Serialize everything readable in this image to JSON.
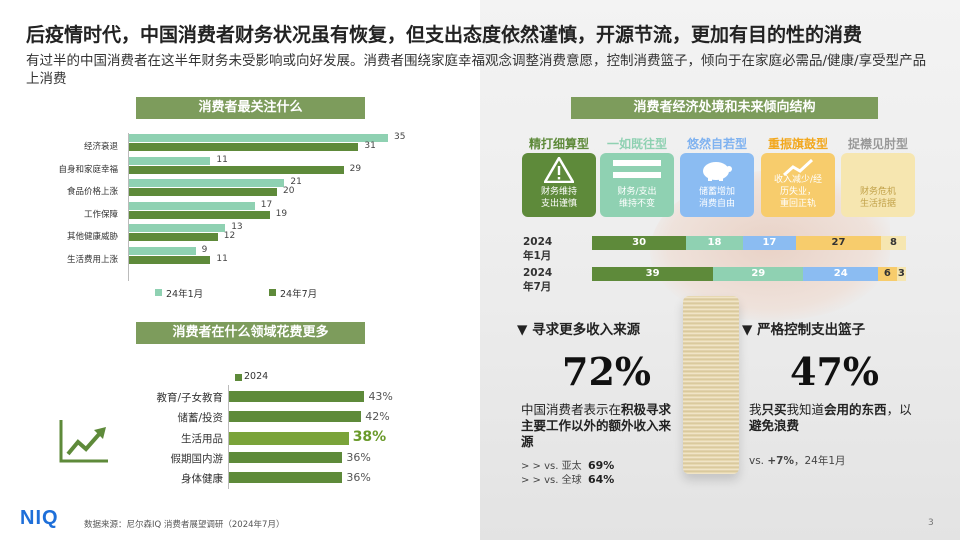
{
  "title": "后疫情时代，中国消费者财务状况虽有恢复，但支出态度依然谨慎，开源节流，更加有目的性的消费",
  "subtitle": "有过半的中国消费者在这半年财务未受影响或向好发展。消费者围绕家庭幸福观念调整消费意愿，控制消费篮子，倾向于在家庭必需品/健康/享受型产品上消费",
  "concerns": {
    "header": "消费者最关注什么",
    "colors": {
      "jan": "#8fd1b2",
      "jul": "#5e8a3a"
    },
    "legend_jan": "24年1月",
    "legend_jul": "24年7月",
    "chart_data": {
      "type": "bar",
      "categories": [
        "经济衰退",
        "自身和家庭幸福",
        "食品价格上涨",
        "工作保障",
        "其他健康威胁",
        "生活费用上涨"
      ],
      "series": [
        {
          "name": "24年1月",
          "values": [
            35,
            11,
            21,
            17,
            13,
            9
          ]
        },
        {
          "name": "24年7月",
          "values": [
            31,
            29,
            20,
            19,
            12,
            11
          ]
        }
      ]
    }
  },
  "spending": {
    "header": "消费者在什么领域花费更多",
    "legend": "2024",
    "color": "#5e8a3a",
    "highlight_color": "#7aa33a",
    "chart_data": {
      "type": "bar",
      "categories": [
        "教育/子女教育",
        "储蓄/投资",
        "生活用品",
        "假期国内游",
        "身体健康"
      ],
      "series": [
        {
          "name": "2024",
          "values": [
            43,
            42,
            38,
            36,
            36
          ]
        }
      ],
      "value_labels": [
        "43%",
        "42%",
        "38%",
        "36%",
        "36%"
      ],
      "highlight_index": 2
    },
    "icon": "rising-chart-icon"
  },
  "structure": {
    "header": "消费者经济处境和未来倾向结构",
    "types": [
      {
        "label": "精打细算型",
        "color": "#5e8a3a",
        "card_bg": "#5e8a3a",
        "card_text": "财务维持\n支出谨慎",
        "icon": "warning-icon"
      },
      {
        "label": "一如既往型",
        "color": "#8fd1b2",
        "card_bg": "#8fd1b2",
        "card_text": "财务/支出\n维持不变",
        "icon": "equals-icon"
      },
      {
        "label": "悠然自若型",
        "color": "#7fb2f0",
        "card_bg": "#8bbcf2",
        "card_text": "储蓄增加\n消费自由",
        "icon": "piggy-bank-icon"
      },
      {
        "label": "重振旗鼓型",
        "color": "#f2a81e",
        "card_bg": "#f7cc6c",
        "card_text": "收入减少/经\n历失业，\n重回正轨",
        "icon": "chart-up-icon"
      },
      {
        "label": "捉襟见肘型",
        "color": "#999999",
        "card_bg": "#f6e6b0",
        "card_text": "财务危机\n生活拮据",
        "icon": "none"
      }
    ],
    "rows": [
      {
        "label": "2024年1月",
        "values": [
          30,
          18,
          17,
          27,
          8
        ]
      },
      {
        "label": "2024年7月",
        "values": [
          39,
          29,
          24,
          6,
          3
        ]
      }
    ],
    "seg_colors": [
      "#5e8a3a",
      "#8fd1b2",
      "#8bbcf2",
      "#f7cc6c",
      "#f6e6b0"
    ]
  },
  "income": {
    "heading": "▼ 寻求更多收入来源",
    "percent": "72%",
    "text_a": "中国消费者表示在",
    "text_b": "积极寻求主要工作以外的额外收入来源",
    "cmp1_label": "> >  vs.  亚太",
    "cmp1_val": "69%",
    "cmp2_label": "> >  vs.  全球",
    "cmp2_val": "64%"
  },
  "basket": {
    "heading": "▼ 严格控制支出篮子",
    "percent": "47%",
    "text_a": "我",
    "text_b": "只买",
    "text_c": "我知道",
    "text_d": "会用的东西",
    "text_e": "，以",
    "text_f": "避免浪费",
    "cmp_a": "vs. ",
    "cmp_b": "+7%",
    "cmp_c": "，24年1月"
  },
  "footer": {
    "logo": "NIQ",
    "source": "数据来源：尼尔森IQ 消费者展望调研（2024年7月）",
    "page": "3"
  }
}
